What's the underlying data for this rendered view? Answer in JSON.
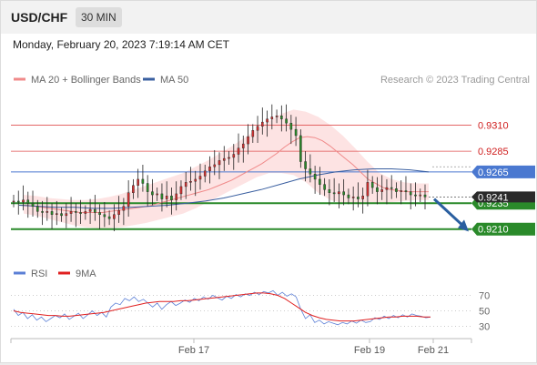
{
  "header": {
    "pair": "USD/CHF",
    "interval": "30 MIN",
    "datetime": "Monday, February 20, 2023 7:19:14 AM CET"
  },
  "legend": {
    "ma20_label": "MA 20 + Bollinger Bands",
    "ma20_color": "#f08a8a",
    "ma50_label": "MA 50",
    "ma50_color": "#3a5fa0",
    "credit": "Research © 2023 Trading Central"
  },
  "colors": {
    "bull": "#d03030",
    "bear": "#2a8a2a",
    "resistance": "#e05050",
    "pivot_line": "#2a8a2a",
    "current_line": "#4a78d0",
    "rsi": "#5b7fd6",
    "rsi_ma": "#e02020",
    "arrow": "#2a5fa0"
  },
  "chart_data": [
    {
      "type": "line",
      "title": "",
      "ylim": [
        0.918,
        0.9342
      ],
      "x_ticks": [
        "Feb 17",
        "Feb 19",
        "Feb 21"
      ],
      "current_price": "0.9241",
      "levels": [
        {
          "label": "0.9310",
          "value": 0.931,
          "kind": "resistance"
        },
        {
          "label": "0.9285",
          "value": 0.9285,
          "kind": "resistance"
        },
        {
          "label": "0.9265",
          "value": 0.9265,
          "kind": "pivot-zone"
        },
        {
          "label": "0.9235",
          "value": 0.9235,
          "kind": "pivot"
        },
        {
          "label": "0.9210",
          "value": 0.921,
          "kind": "support"
        }
      ],
      "close": [
        0.9237,
        0.9236,
        0.9238,
        0.9235,
        0.9232,
        0.9227,
        0.9226,
        0.9227,
        0.9224,
        0.9225,
        0.9223,
        0.9225,
        0.9227,
        0.9226,
        0.9225,
        0.9227,
        0.9229,
        0.9226,
        0.9224,
        0.9222,
        0.922,
        0.9224,
        0.9228,
        0.9232,
        0.9245,
        0.9252,
        0.9258,
        0.9254,
        0.9246,
        0.9243,
        0.9244,
        0.9239,
        0.9242,
        0.9238,
        0.9244,
        0.9251,
        0.9255,
        0.9256,
        0.9258,
        0.9261,
        0.9266,
        0.927,
        0.9272,
        0.9276,
        0.9278,
        0.9279,
        0.9282,
        0.9288,
        0.9292,
        0.9299,
        0.9305,
        0.9309,
        0.9313,
        0.9316,
        0.9318,
        0.9319,
        0.9316,
        0.9312,
        0.9306,
        0.93,
        0.9275,
        0.9268,
        0.9263,
        0.9258,
        0.9253,
        0.9248,
        0.9245,
        0.9244,
        0.9246,
        0.9243,
        0.924,
        0.9241,
        0.9239,
        0.9242,
        0.9255,
        0.925,
        0.9246,
        0.9248,
        0.925,
        0.9249,
        0.9246,
        0.9247,
        0.9246,
        0.9243,
        0.9242,
        0.9243,
        0.9241
      ],
      "ma20": [
        0.9233,
        0.9233,
        0.9232,
        0.9231,
        0.923,
        0.9229,
        0.9228,
        0.9227,
        0.9226,
        0.9226,
        0.9226,
        0.9226,
        0.9227,
        0.9228,
        0.9229,
        0.923,
        0.9231,
        0.9232,
        0.9234,
        0.9236,
        0.9238,
        0.924,
        0.9242,
        0.9244,
        0.9246,
        0.9248,
        0.9251,
        0.9254,
        0.9257,
        0.9261,
        0.9265,
        0.9269,
        0.9273,
        0.9278,
        0.9283,
        0.9289,
        0.9294,
        0.9298,
        0.9299,
        0.9298,
        0.9295,
        0.929,
        0.9284,
        0.9278,
        0.9272,
        0.9265,
        0.9258,
        0.9254,
        0.925,
        0.9248,
        0.9247,
        0.9246,
        0.9246,
        0.9246,
        0.9246
      ],
      "ma50": [
        0.9233,
        0.9232,
        0.9231,
        0.9231,
        0.923,
        0.923,
        0.9231,
        0.9232,
        0.9233,
        0.9235,
        0.9237,
        0.924,
        0.9244,
        0.9248,
        0.9253,
        0.9258,
        0.9262,
        0.9265,
        0.9267,
        0.9268,
        0.9268,
        0.9267,
        0.9265
      ],
      "bb_upper": [
        0.9243,
        0.9242,
        0.924,
        0.9239,
        0.9238,
        0.9238,
        0.9239,
        0.9241,
        0.9244,
        0.9248,
        0.9252,
        0.9256,
        0.926,
        0.9264,
        0.927,
        0.9276,
        0.9283,
        0.929,
        0.9298,
        0.9306,
        0.9314,
        0.9321,
        0.9325,
        0.9323,
        0.9318,
        0.931,
        0.93,
        0.9288,
        0.9275,
        0.9264,
        0.9258,
        0.9255,
        0.9254,
        0.9254
      ],
      "bb_lower": [
        0.9225,
        0.9223,
        0.922,
        0.9217,
        0.9214,
        0.9212,
        0.9211,
        0.9211,
        0.9212,
        0.9214,
        0.9216,
        0.9219,
        0.9222,
        0.9225,
        0.923,
        0.9236,
        0.9242,
        0.9248,
        0.9254,
        0.926,
        0.9264,
        0.9264,
        0.9262,
        0.9255,
        0.9245,
        0.9238,
        0.9235,
        0.9234,
        0.9234,
        0.9235,
        0.9236,
        0.9237,
        0.9238,
        0.9238
      ]
    },
    {
      "type": "line",
      "title": "",
      "ylim": [
        20,
        80
      ],
      "y_ticks": [
        70,
        50,
        30
      ],
      "series": [
        {
          "name": "RSI",
          "values": [
            52,
            44,
            48,
            40,
            45,
            38,
            42,
            36,
            40,
            44,
            41,
            46,
            39,
            43,
            47,
            40,
            45,
            50,
            44,
            48,
            42,
            55,
            60,
            58,
            66,
            63,
            68,
            62,
            65,
            60,
            55,
            60,
            52,
            58,
            62,
            57,
            60,
            64,
            61,
            66,
            63,
            68,
            65,
            70,
            67,
            64,
            69,
            66,
            71,
            68,
            72,
            70,
            74,
            71,
            75,
            73,
            76,
            70,
            74,
            69,
            72,
            68,
            52,
            40,
            45,
            35,
            38,
            33,
            36,
            34,
            32,
            35,
            33,
            37,
            34,
            38,
            35,
            36,
            41,
            39,
            43,
            40,
            44,
            41,
            45,
            42,
            46,
            44,
            43,
            41,
            42
          ]
        },
        {
          "name": "9MA",
          "values": [
            50,
            48,
            47,
            46,
            45,
            44,
            44,
            43,
            43,
            44,
            45,
            46,
            47,
            48,
            50,
            52,
            54,
            56,
            58,
            60,
            61,
            62,
            62,
            62,
            63,
            63,
            64,
            65,
            66,
            67,
            68,
            69,
            70,
            71,
            72,
            73,
            73,
            72,
            70,
            66,
            60,
            54,
            48,
            44,
            41,
            39,
            38,
            37,
            37,
            37,
            38,
            39,
            40,
            41,
            42,
            42,
            43,
            43,
            43,
            42,
            42
          ]
        }
      ]
    }
  ]
}
